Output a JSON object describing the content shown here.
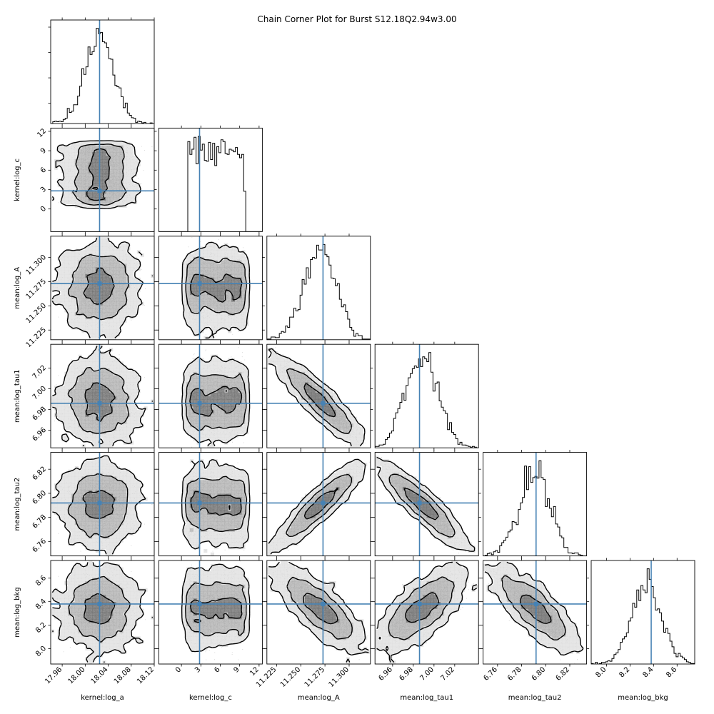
{
  "chart_data": {
    "type": "corner",
    "title": "Chain Corner Plot for Burst S12.18Q2.94w3.00",
    "parameters": [
      {
        "name": "kernel:log_a",
        "truth": 18.025,
        "range": [
          17.94,
          18.12
        ],
        "ticks": [
          17.96,
          18.0,
          18.04,
          18.08,
          18.12
        ],
        "tick_labels": [
          "17.96",
          "18.00",
          "18.04",
          "18.08",
          "18.12"
        ],
        "dist": "normal",
        "mean": 18.025,
        "sd": 0.025
      },
      {
        "name": "kernel:log_c",
        "truth": 2.8,
        "range": [
          -3.5,
          12.5
        ],
        "ticks": [
          0,
          3,
          6,
          9,
          12
        ],
        "tick_labels": [
          "0",
          "3",
          "6",
          "9",
          "12"
        ],
        "dist": "uniform",
        "low": 1.0,
        "high": 9.8
      },
      {
        "name": "mean:log_A",
        "truth": 11.273,
        "range": [
          11.215,
          11.322
        ],
        "ticks": [
          11.225,
          11.25,
          11.275,
          11.3
        ],
        "tick_labels": [
          "11.225",
          "11.250",
          "11.275",
          "11.300"
        ],
        "dist": "normal",
        "mean": 11.27,
        "sd": 0.017
      },
      {
        "name": "mean:log_tau1",
        "truth": 6.986,
        "range": [
          6.943,
          7.043
        ],
        "ticks": [
          6.96,
          6.98,
          7.0,
          7.02
        ],
        "tick_labels": [
          "6.96",
          "6.98",
          "7.00",
          "7.02"
        ],
        "dist": "normal",
        "mean": 6.988,
        "sd": 0.016
      },
      {
        "name": "mean:log_tau2",
        "truth": 6.792,
        "range": [
          6.748,
          6.834
        ],
        "ticks": [
          6.76,
          6.78,
          6.8,
          6.82
        ],
        "tick_labels": [
          "6.76",
          "6.78",
          "6.80",
          "6.82"
        ],
        "dist": "normal",
        "mean": 6.791,
        "sd": 0.013
      },
      {
        "name": "mean:log_bkg",
        "truth": 8.38,
        "range": [
          7.87,
          8.75
        ],
        "ticks": [
          8.0,
          8.2,
          8.4,
          8.6
        ],
        "tick_labels": [
          "8.0",
          "8.2",
          "8.4",
          "8.6"
        ],
        "dist": "normal",
        "mean": 8.34,
        "sd": 0.13
      }
    ],
    "correlations": [
      [
        1,
        0,
        0,
        0,
        0,
        0
      ],
      [
        0,
        1,
        0,
        0,
        0,
        0
      ],
      [
        0,
        0,
        1,
        -0.92,
        0.93,
        -0.8
      ],
      [
        0,
        0,
        -0.92,
        1,
        -0.92,
        0.7
      ],
      [
        0,
        0,
        0.93,
        -0.92,
        1,
        -0.8
      ],
      [
        0,
        0,
        -0.8,
        0.7,
        -0.8,
        1
      ]
    ],
    "truth_color": "#4682b4",
    "contour_color": "#000000",
    "grid": false
  }
}
